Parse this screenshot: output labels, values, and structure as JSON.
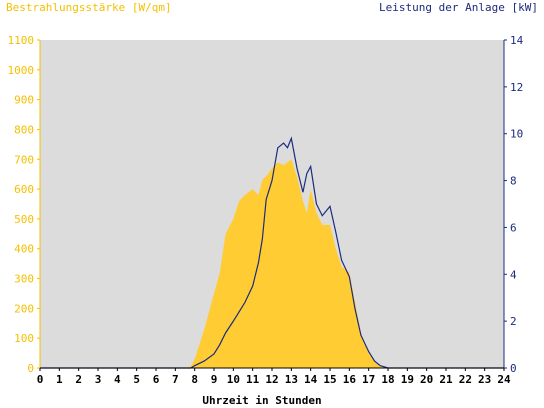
{
  "chart_data": {
    "type": "area",
    "left_axis_title": "Bestrahlungsstärke [W/qm]",
    "right_axis_title": "Leistung der Anlage [kW]",
    "xlabel": "Uhrzeit in Stunden",
    "x_ticks": [
      "0",
      "1",
      "2",
      "3",
      "4",
      "5",
      "6",
      "7",
      "8",
      "9",
      "10",
      "11",
      "12",
      "13",
      "14",
      "15",
      "16",
      "17",
      "18",
      "19",
      "20",
      "21",
      "22",
      "23",
      "24"
    ],
    "y_left_ticks": [
      "0",
      "100",
      "200",
      "300",
      "400",
      "500",
      "600",
      "700",
      "800",
      "900",
      "1000",
      "1100"
    ],
    "y_right_ticks": [
      "0",
      "2",
      "4",
      "6",
      "8",
      "10",
      "12",
      "14"
    ],
    "xlim": [
      0,
      24
    ],
    "ylim_left": [
      0,
      1100
    ],
    "ylim_right": [
      0,
      14
    ],
    "grid": false,
    "colors": {
      "plot_background": "#dcdcdc",
      "irradiance_fill": "#ffcc33",
      "power_line": "#1c2b80",
      "left_axis_text": "#f5c000",
      "right_axis_text": "#1c2b80"
    },
    "series": [
      {
        "type": "area",
        "axis": "left",
        "x": [
          0,
          7.5,
          7.8,
          8,
          8.5,
          9,
          9.3,
          9.6,
          10,
          10.3,
          10.6,
          11,
          11.3,
          11.5,
          11.8,
          12,
          12.3,
          12.6,
          13,
          13.3,
          13.6,
          13.8,
          14,
          14.3,
          14.6,
          15,
          15.3,
          15.6,
          16,
          16.3,
          16.6,
          17,
          17.3,
          17.6,
          18,
          24
        ],
        "y": [
          0,
          0,
          5,
          30,
          130,
          250,
          320,
          450,
          500,
          560,
          580,
          600,
          580,
          630,
          650,
          670,
          690,
          680,
          700,
          640,
          560,
          520,
          600,
          520,
          480,
          480,
          400,
          340,
          320,
          220,
          120,
          50,
          20,
          5,
          0,
          0
        ]
      },
      {
        "type": "line",
        "axis": "right",
        "x": [
          0,
          7.8,
          8,
          8.5,
          9,
          9.3,
          9.6,
          10,
          10.3,
          10.6,
          11,
          11.3,
          11.5,
          11.7,
          12,
          12.3,
          12.6,
          12.8,
          13,
          13.3,
          13.6,
          13.8,
          14,
          14.3,
          14.6,
          15,
          15.3,
          15.6,
          16,
          16.3,
          16.6,
          17,
          17.3,
          17.6,
          18,
          24
        ],
        "y": [
          0,
          0,
          0.1,
          0.3,
          0.6,
          1.0,
          1.5,
          2.0,
          2.4,
          2.8,
          3.5,
          4.5,
          5.5,
          7.2,
          8.0,
          9.4,
          9.6,
          9.4,
          9.8,
          8.5,
          7.5,
          8.3,
          8.6,
          7.0,
          6.5,
          6.9,
          5.8,
          4.6,
          3.9,
          2.5,
          1.4,
          0.7,
          0.3,
          0.1,
          0,
          0
        ]
      }
    ]
  }
}
